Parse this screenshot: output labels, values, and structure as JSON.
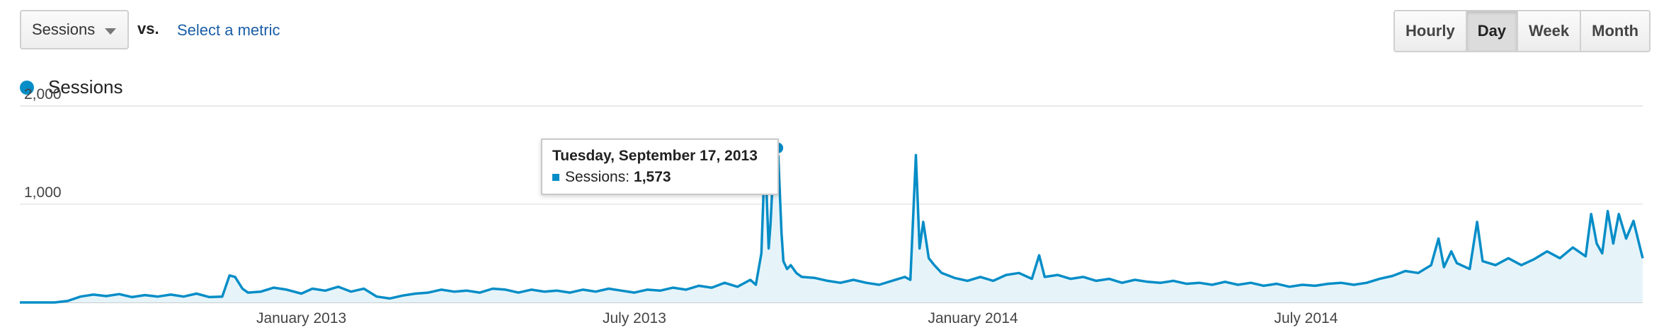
{
  "toolbar": {
    "metric_select": "Sessions",
    "vs_label": "vs.",
    "select_metric_link": "Select a metric",
    "granularity": [
      {
        "label": "Hourly",
        "active": false
      },
      {
        "label": "Day",
        "active": true
      },
      {
        "label": "Week",
        "active": false
      },
      {
        "label": "Month",
        "active": false
      }
    ]
  },
  "legend": {
    "label": "Sessions",
    "color": "#058dc7"
  },
  "tooltip": {
    "date": "Tuesday, September 17, 2013",
    "series": "Sessions:",
    "value": "1,573"
  },
  "chart_data": {
    "type": "area",
    "title": "",
    "xlabel": "",
    "ylabel": "",
    "series_name": "Sessions",
    "color": "#058dc7",
    "fill_color": "#e6f4fa",
    "grid": true,
    "x_start": "2012-08-01",
    "x_end": "2014-12-31",
    "ylim": [
      0,
      2000
    ],
    "y_ticks": [
      {
        "value": 1000,
        "label": "1,000"
      },
      {
        "value": 2000,
        "label": "2,000"
      }
    ],
    "x_ticks": [
      {
        "date": "2013-01-01",
        "label": "January 2013"
      },
      {
        "date": "2013-07-01",
        "label": "July 2013"
      },
      {
        "date": "2014-01-01",
        "label": "January 2014"
      },
      {
        "date": "2014-07-01",
        "label": "July 2014"
      }
    ],
    "highlight": {
      "date": "2013-09-17",
      "value": 1573
    },
    "points": [
      [
        "2012-08-01",
        0
      ],
      [
        "2012-08-10",
        0
      ],
      [
        "2012-08-20",
        0
      ],
      [
        "2012-08-27",
        15
      ],
      [
        "2012-09-03",
        60
      ],
      [
        "2012-09-10",
        80
      ],
      [
        "2012-09-17",
        65
      ],
      [
        "2012-09-24",
        85
      ],
      [
        "2012-10-01",
        55
      ],
      [
        "2012-10-08",
        75
      ],
      [
        "2012-10-15",
        60
      ],
      [
        "2012-10-22",
        80
      ],
      [
        "2012-10-29",
        60
      ],
      [
        "2012-11-05",
        90
      ],
      [
        "2012-11-12",
        55
      ],
      [
        "2012-11-19",
        60
      ],
      [
        "2012-11-23",
        275
      ],
      [
        "2012-11-26",
        260
      ],
      [
        "2012-11-30",
        140
      ],
      [
        "2012-12-03",
        100
      ],
      [
        "2012-12-10",
        110
      ],
      [
        "2012-12-17",
        150
      ],
      [
        "2012-12-24",
        130
      ],
      [
        "2013-01-01",
        90
      ],
      [
        "2013-01-07",
        140
      ],
      [
        "2013-01-14",
        120
      ],
      [
        "2013-01-21",
        160
      ],
      [
        "2013-01-28",
        110
      ],
      [
        "2013-02-04",
        140
      ],
      [
        "2013-02-11",
        60
      ],
      [
        "2013-02-18",
        40
      ],
      [
        "2013-02-25",
        70
      ],
      [
        "2013-03-04",
        90
      ],
      [
        "2013-03-11",
        100
      ],
      [
        "2013-03-18",
        130
      ],
      [
        "2013-03-25",
        110
      ],
      [
        "2013-04-01",
        120
      ],
      [
        "2013-04-08",
        100
      ],
      [
        "2013-04-15",
        140
      ],
      [
        "2013-04-22",
        130
      ],
      [
        "2013-04-29",
        100
      ],
      [
        "2013-05-06",
        130
      ],
      [
        "2013-05-13",
        110
      ],
      [
        "2013-05-20",
        120
      ],
      [
        "2013-05-27",
        100
      ],
      [
        "2013-06-03",
        130
      ],
      [
        "2013-06-10",
        110
      ],
      [
        "2013-06-17",
        140
      ],
      [
        "2013-06-24",
        120
      ],
      [
        "2013-07-01",
        100
      ],
      [
        "2013-07-08",
        130
      ],
      [
        "2013-07-15",
        120
      ],
      [
        "2013-07-22",
        150
      ],
      [
        "2013-07-29",
        130
      ],
      [
        "2013-08-05",
        170
      ],
      [
        "2013-08-12",
        150
      ],
      [
        "2013-08-19",
        200
      ],
      [
        "2013-08-26",
        160
      ],
      [
        "2013-09-02",
        230
      ],
      [
        "2013-09-05",
        180
      ],
      [
        "2013-09-08",
        500
      ],
      [
        "2013-09-10",
        1540
      ],
      [
        "2013-09-12",
        550
      ],
      [
        "2013-09-13",
        800
      ],
      [
        "2013-09-15",
        1560
      ],
      [
        "2013-09-17",
        1573
      ],
      [
        "2013-09-19",
        700
      ],
      [
        "2013-09-20",
        420
      ],
      [
        "2013-09-22",
        340
      ],
      [
        "2013-09-24",
        380
      ],
      [
        "2013-09-27",
        300
      ],
      [
        "2013-09-30",
        260
      ],
      [
        "2013-10-07",
        250
      ],
      [
        "2013-10-14",
        220
      ],
      [
        "2013-10-21",
        200
      ],
      [
        "2013-10-28",
        230
      ],
      [
        "2013-11-04",
        200
      ],
      [
        "2013-11-11",
        180
      ],
      [
        "2013-11-18",
        220
      ],
      [
        "2013-11-25",
        260
      ],
      [
        "2013-11-28",
        230
      ],
      [
        "2013-12-01",
        1500
      ],
      [
        "2013-12-03",
        550
      ],
      [
        "2013-12-05",
        820
      ],
      [
        "2013-12-08",
        450
      ],
      [
        "2013-12-11",
        380
      ],
      [
        "2013-12-15",
        300
      ],
      [
        "2013-12-22",
        250
      ],
      [
        "2013-12-29",
        220
      ],
      [
        "2014-01-05",
        260
      ],
      [
        "2014-01-12",
        220
      ],
      [
        "2014-01-19",
        280
      ],
      [
        "2014-01-26",
        300
      ],
      [
        "2014-02-02",
        240
      ],
      [
        "2014-02-06",
        480
      ],
      [
        "2014-02-09",
        260
      ],
      [
        "2014-02-16",
        280
      ],
      [
        "2014-02-23",
        240
      ],
      [
        "2014-03-02",
        260
      ],
      [
        "2014-03-09",
        220
      ],
      [
        "2014-03-16",
        240
      ],
      [
        "2014-03-23",
        200
      ],
      [
        "2014-03-30",
        230
      ],
      [
        "2014-04-06",
        210
      ],
      [
        "2014-04-13",
        200
      ],
      [
        "2014-04-20",
        220
      ],
      [
        "2014-04-27",
        190
      ],
      [
        "2014-05-04",
        200
      ],
      [
        "2014-05-11",
        180
      ],
      [
        "2014-05-18",
        210
      ],
      [
        "2014-05-25",
        180
      ],
      [
        "2014-06-01",
        200
      ],
      [
        "2014-06-08",
        170
      ],
      [
        "2014-06-15",
        190
      ],
      [
        "2014-06-22",
        160
      ],
      [
        "2014-06-29",
        180
      ],
      [
        "2014-07-06",
        170
      ],
      [
        "2014-07-13",
        190
      ],
      [
        "2014-07-20",
        200
      ],
      [
        "2014-07-27",
        180
      ],
      [
        "2014-08-03",
        200
      ],
      [
        "2014-08-10",
        240
      ],
      [
        "2014-08-17",
        270
      ],
      [
        "2014-08-24",
        320
      ],
      [
        "2014-08-31",
        300
      ],
      [
        "2014-09-07",
        380
      ],
      [
        "2014-09-11",
        650
      ],
      [
        "2014-09-14",
        360
      ],
      [
        "2014-09-18",
        520
      ],
      [
        "2014-09-21",
        400
      ],
      [
        "2014-09-28",
        340
      ],
      [
        "2014-10-02",
        820
      ],
      [
        "2014-10-05",
        420
      ],
      [
        "2014-10-12",
        380
      ],
      [
        "2014-10-19",
        450
      ],
      [
        "2014-10-26",
        380
      ],
      [
        "2014-11-02",
        440
      ],
      [
        "2014-11-09",
        520
      ],
      [
        "2014-11-16",
        450
      ],
      [
        "2014-11-23",
        560
      ],
      [
        "2014-11-30",
        470
      ],
      [
        "2014-12-03",
        900
      ],
      [
        "2014-12-06",
        600
      ],
      [
        "2014-12-09",
        500
      ],
      [
        "2014-12-12",
        930
      ],
      [
        "2014-12-15",
        600
      ],
      [
        "2014-12-18",
        900
      ],
      [
        "2014-12-22",
        650
      ],
      [
        "2014-12-26",
        830
      ],
      [
        "2014-12-29",
        600
      ],
      [
        "2014-12-31",
        450
      ]
    ]
  }
}
